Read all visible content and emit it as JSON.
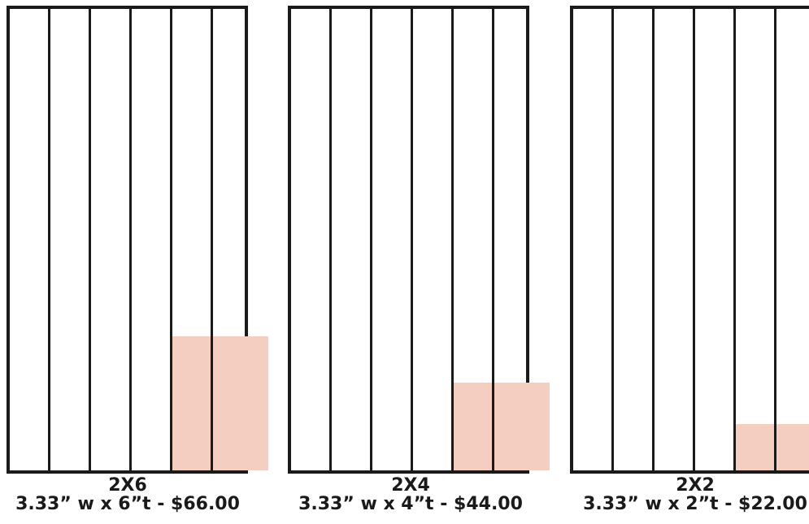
{
  "colors": {
    "outline": "#1a1a1a",
    "fill": "#f4cfc1",
    "background": "#ffffff"
  },
  "columns_per_panel": 6,
  "panels": [
    {
      "size_label": "2X6",
      "spec_label": "3.33” w x 6”t - $66.00",
      "filled_columns": 2,
      "filled_height_fraction": 0.29
    },
    {
      "size_label": "2X4",
      "spec_label": "3.33” w x 4”t - $44.00",
      "filled_columns": 2,
      "filled_height_fraction": 0.19
    },
    {
      "size_label": "2X2",
      "spec_label": "3.33” w x 2”t - $22.00",
      "filled_columns": 2,
      "filled_height_fraction": 0.1
    }
  ]
}
